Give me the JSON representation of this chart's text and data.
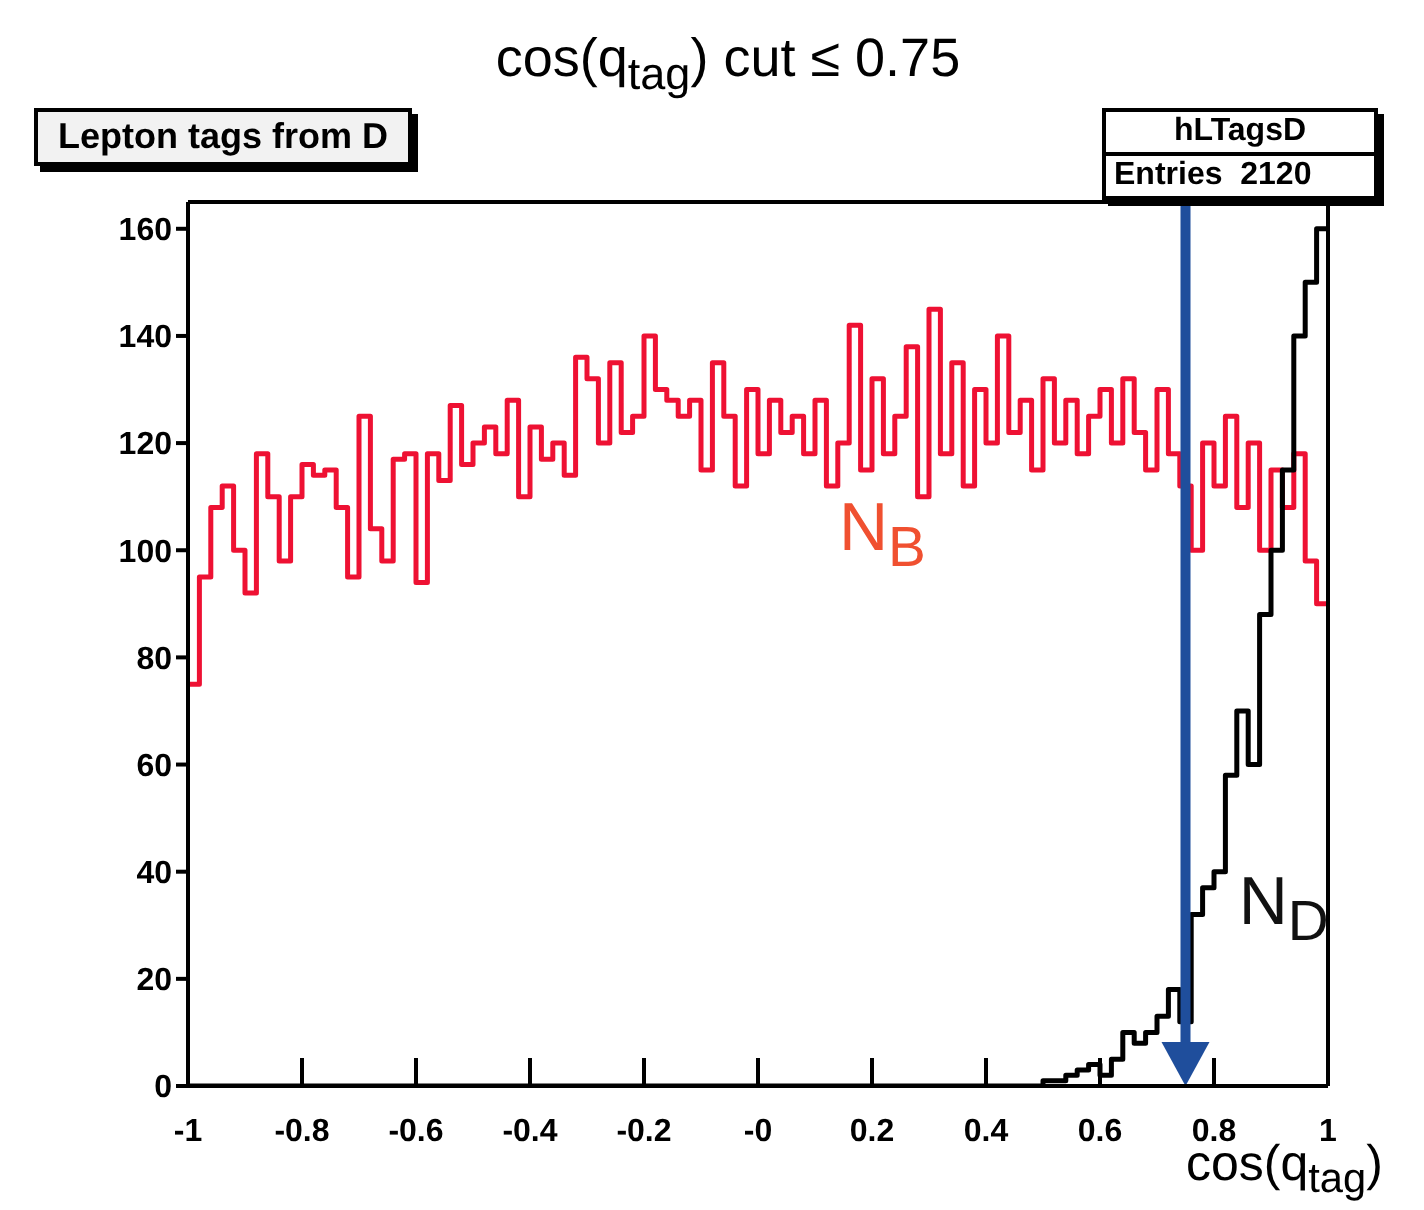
{
  "chart_data": {
    "type": "histogram",
    "title": "cos(q$_{tag}$) cut ≤ 0.75",
    "xlabel": "cos(q$_{tag}$)",
    "annotations": [
      "Lepton tags from D",
      "hLTagsD",
      "Entries  2120"
    ],
    "bins": [
      -1,
      -0.98,
      -0.96,
      -0.94,
      -0.92,
      -0.9,
      -0.88,
      -0.86,
      -0.84,
      -0.82,
      -0.8,
      -0.78,
      -0.76,
      -0.74,
      -0.72,
      -0.7,
      -0.68,
      -0.66,
      -0.64,
      -0.62,
      -0.6,
      -0.58,
      -0.56,
      -0.54,
      -0.52,
      -0.5,
      -0.48,
      -0.46,
      -0.44,
      -0.42,
      -0.4,
      -0.38,
      -0.36,
      -0.34,
      -0.32,
      -0.3,
      -0.28,
      -0.26,
      -0.24,
      -0.22,
      -0.2,
      -0.18,
      -0.16,
      -0.14,
      -0.12,
      -0.1,
      -0.08,
      -0.06,
      -0.04,
      -0.02,
      0,
      0.02,
      0.04,
      0.06,
      0.08,
      0.1,
      0.12,
      0.14,
      0.16,
      0.18,
      0.2,
      0.22,
      0.24,
      0.26,
      0.28,
      0.3,
      0.32,
      0.34,
      0.36,
      0.38,
      0.4,
      0.42,
      0.44,
      0.46,
      0.48,
      0.5,
      0.52,
      0.54,
      0.56,
      0.58,
      0.6,
      0.62,
      0.64,
      0.66,
      0.68,
      0.7,
      0.72,
      0.74,
      0.76,
      0.78,
      0.8,
      0.82,
      0.84,
      0.86,
      0.88,
      0.9,
      0.92,
      0.94,
      0.96,
      0.98,
      1
    ],
    "series": [
      {
        "name": "N$_{B}$",
        "color": "#ee1133",
        "values": [
          75,
          95,
          108,
          112,
          100,
          92,
          118,
          110,
          98,
          110,
          116,
          114,
          115,
          108,
          95,
          125,
          104,
          98,
          117,
          118,
          94,
          118,
          113,
          127,
          116,
          120,
          123,
          118,
          128,
          110,
          123,
          117,
          120,
          114,
          136,
          132,
          120,
          135,
          122,
          125,
          140,
          130,
          128,
          125,
          128,
          115,
          135,
          125,
          112,
          130,
          118,
          128,
          122,
          125,
          118,
          128,
          112,
          120,
          142,
          115,
          132,
          118,
          125,
          138,
          110,
          145,
          118,
          135,
          112,
          130,
          120,
          140,
          122,
          128,
          115,
          132,
          120,
          128,
          118,
          125,
          130,
          120,
          132,
          122,
          115,
          130,
          118,
          112,
          100,
          120,
          112,
          125,
          108,
          120,
          100,
          115,
          108,
          118,
          98,
          90
        ]
      },
      {
        "name": "N$_{D}$",
        "color": "#000000",
        "values": [
          0,
          0,
          0,
          0,
          0,
          0,
          0,
          0,
          0,
          0,
          0,
          0,
          0,
          0,
          0,
          0,
          0,
          0,
          0,
          0,
          0,
          0,
          0,
          0,
          0,
          0,
          0,
          0,
          0,
          0,
          0,
          0,
          0,
          0,
          0,
          0,
          0,
          0,
          0,
          0,
          0,
          0,
          0,
          0,
          0,
          0,
          0,
          0,
          0,
          0,
          0,
          0,
          0,
          0,
          0,
          0,
          0,
          0,
          0,
          0,
          0,
          0,
          0,
          0,
          0,
          0,
          0,
          0,
          0,
          0,
          0,
          0,
          0,
          0,
          0,
          1,
          1,
          2,
          3,
          4,
          2,
          5,
          10,
          8,
          10,
          13,
          18,
          12,
          32,
          37,
          40,
          58,
          70,
          60,
          88,
          100,
          115,
          140,
          150,
          160
        ]
      }
    ],
    "xlim": [
      -1,
      1
    ],
    "xticks": [
      -1,
      -0.8,
      -0.6,
      -0.4,
      -0.2,
      {
        "value": 0,
        "label": "-0"
      },
      0.2,
      0.4,
      0.6,
      0.8,
      1
    ],
    "ylim": [
      0,
      165
    ],
    "yticks": [
      0,
      20,
      40,
      60,
      80,
      100,
      120,
      140,
      160
    ],
    "ref_lines": [
      {
        "axis": "x",
        "value": 0.75,
        "color": "#1f4e9c"
      }
    ],
    "tick_labels": true
  }
}
